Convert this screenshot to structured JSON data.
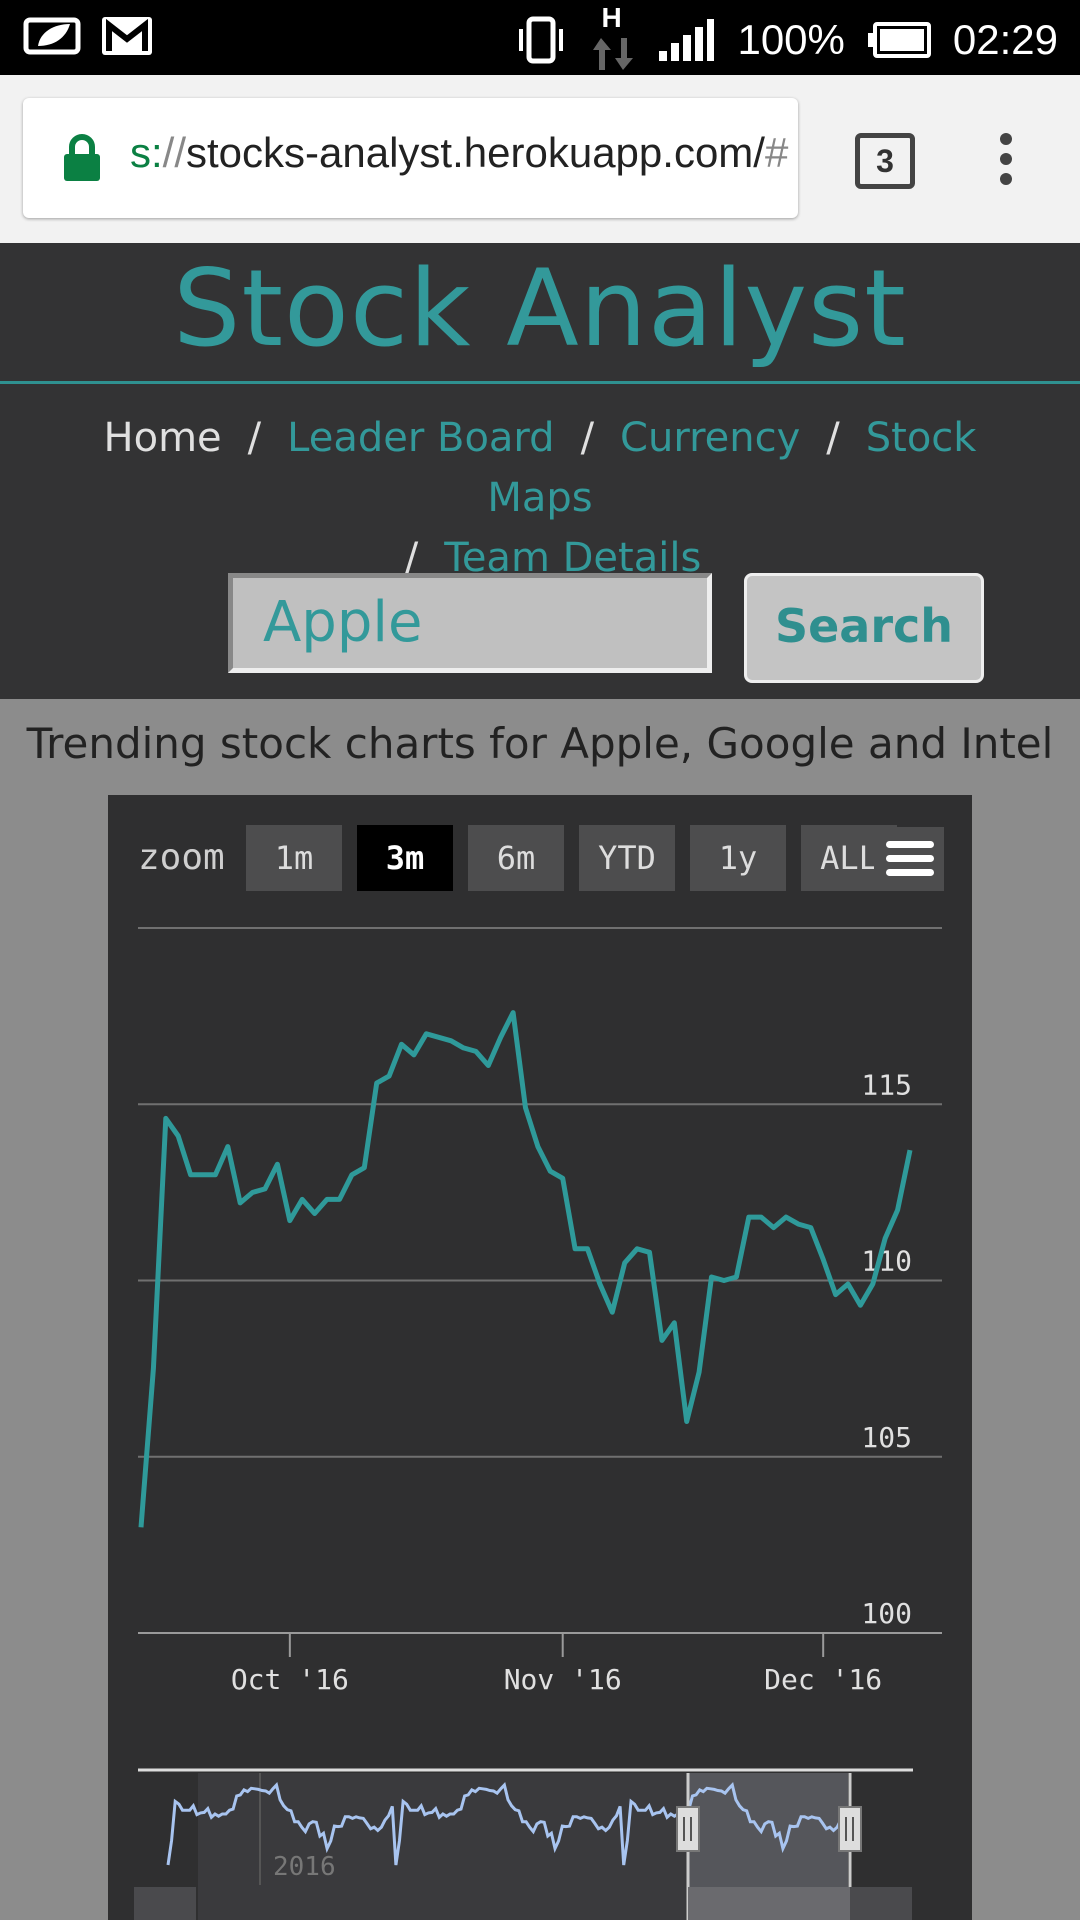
{
  "status_bar": {
    "battery": "100%",
    "time": "02:29",
    "network_indicator": "H",
    "icons": [
      "leaf-icon",
      "gmail-icon",
      "vibrate-icon",
      "data-arrows-icon",
      "signal-icon",
      "battery-icon"
    ]
  },
  "browser": {
    "url_scheme": "s:",
    "url_sep": "//",
    "url_host": "stocks-analyst.herokuapp.com/",
    "url_tail": "#",
    "tab_count": "3",
    "lock_color": "#0b8043"
  },
  "site": {
    "title": "Stock Analyst",
    "nav": {
      "home": "Home",
      "leader_board": "Leader Board",
      "currency": "Currency",
      "stock_maps": "Stock Maps",
      "team_details": "Team Details",
      "separator": "/"
    },
    "search": {
      "value": "Apple",
      "button_label": "Search"
    },
    "accent_color": "#33999a"
  },
  "trending_heading": "Trending stock charts for Apple, Google and Intel",
  "chart": {
    "zoom_label": "zoom",
    "zoom_buttons": [
      "1m",
      "3m",
      "6m",
      "YTD",
      "1y",
      "ALL"
    ],
    "active_zoom": "3m",
    "navigator_year": "2016"
  },
  "chart_data": {
    "type": "line",
    "series": [
      {
        "values": [
          103.0,
          107.5,
          114.6,
          114.1,
          113.0,
          113.0,
          113.0,
          113.8,
          112.2,
          112.5,
          112.6,
          113.3,
          111.7,
          112.3,
          111.9,
          112.3,
          112.3,
          113.0,
          113.2,
          115.6,
          115.8,
          116.7,
          116.4,
          117.0,
          116.9,
          116.8,
          116.6,
          116.5,
          116.1,
          116.9,
          117.6,
          114.9,
          113.8,
          113.1,
          112.9,
          110.9,
          110.9,
          109.9,
          109.1,
          110.5,
          110.9,
          110.8,
          108.3,
          108.8,
          106.0,
          107.4,
          110.1,
          110.0,
          110.1,
          111.8,
          111.8,
          111.5,
          111.8,
          111.6,
          111.5,
          110.6,
          109.6,
          109.9,
          109.3,
          109.9,
          111.2,
          112.0,
          113.7
        ]
      }
    ],
    "y_ticks": [
      "100",
      "105",
      "110",
      "115"
    ],
    "x_ticks": [
      "Oct '16",
      "Nov '16",
      "Dec '16"
    ],
    "ylim": [
      100,
      120
    ],
    "line_color": "#2f9a9a",
    "grid": true
  }
}
